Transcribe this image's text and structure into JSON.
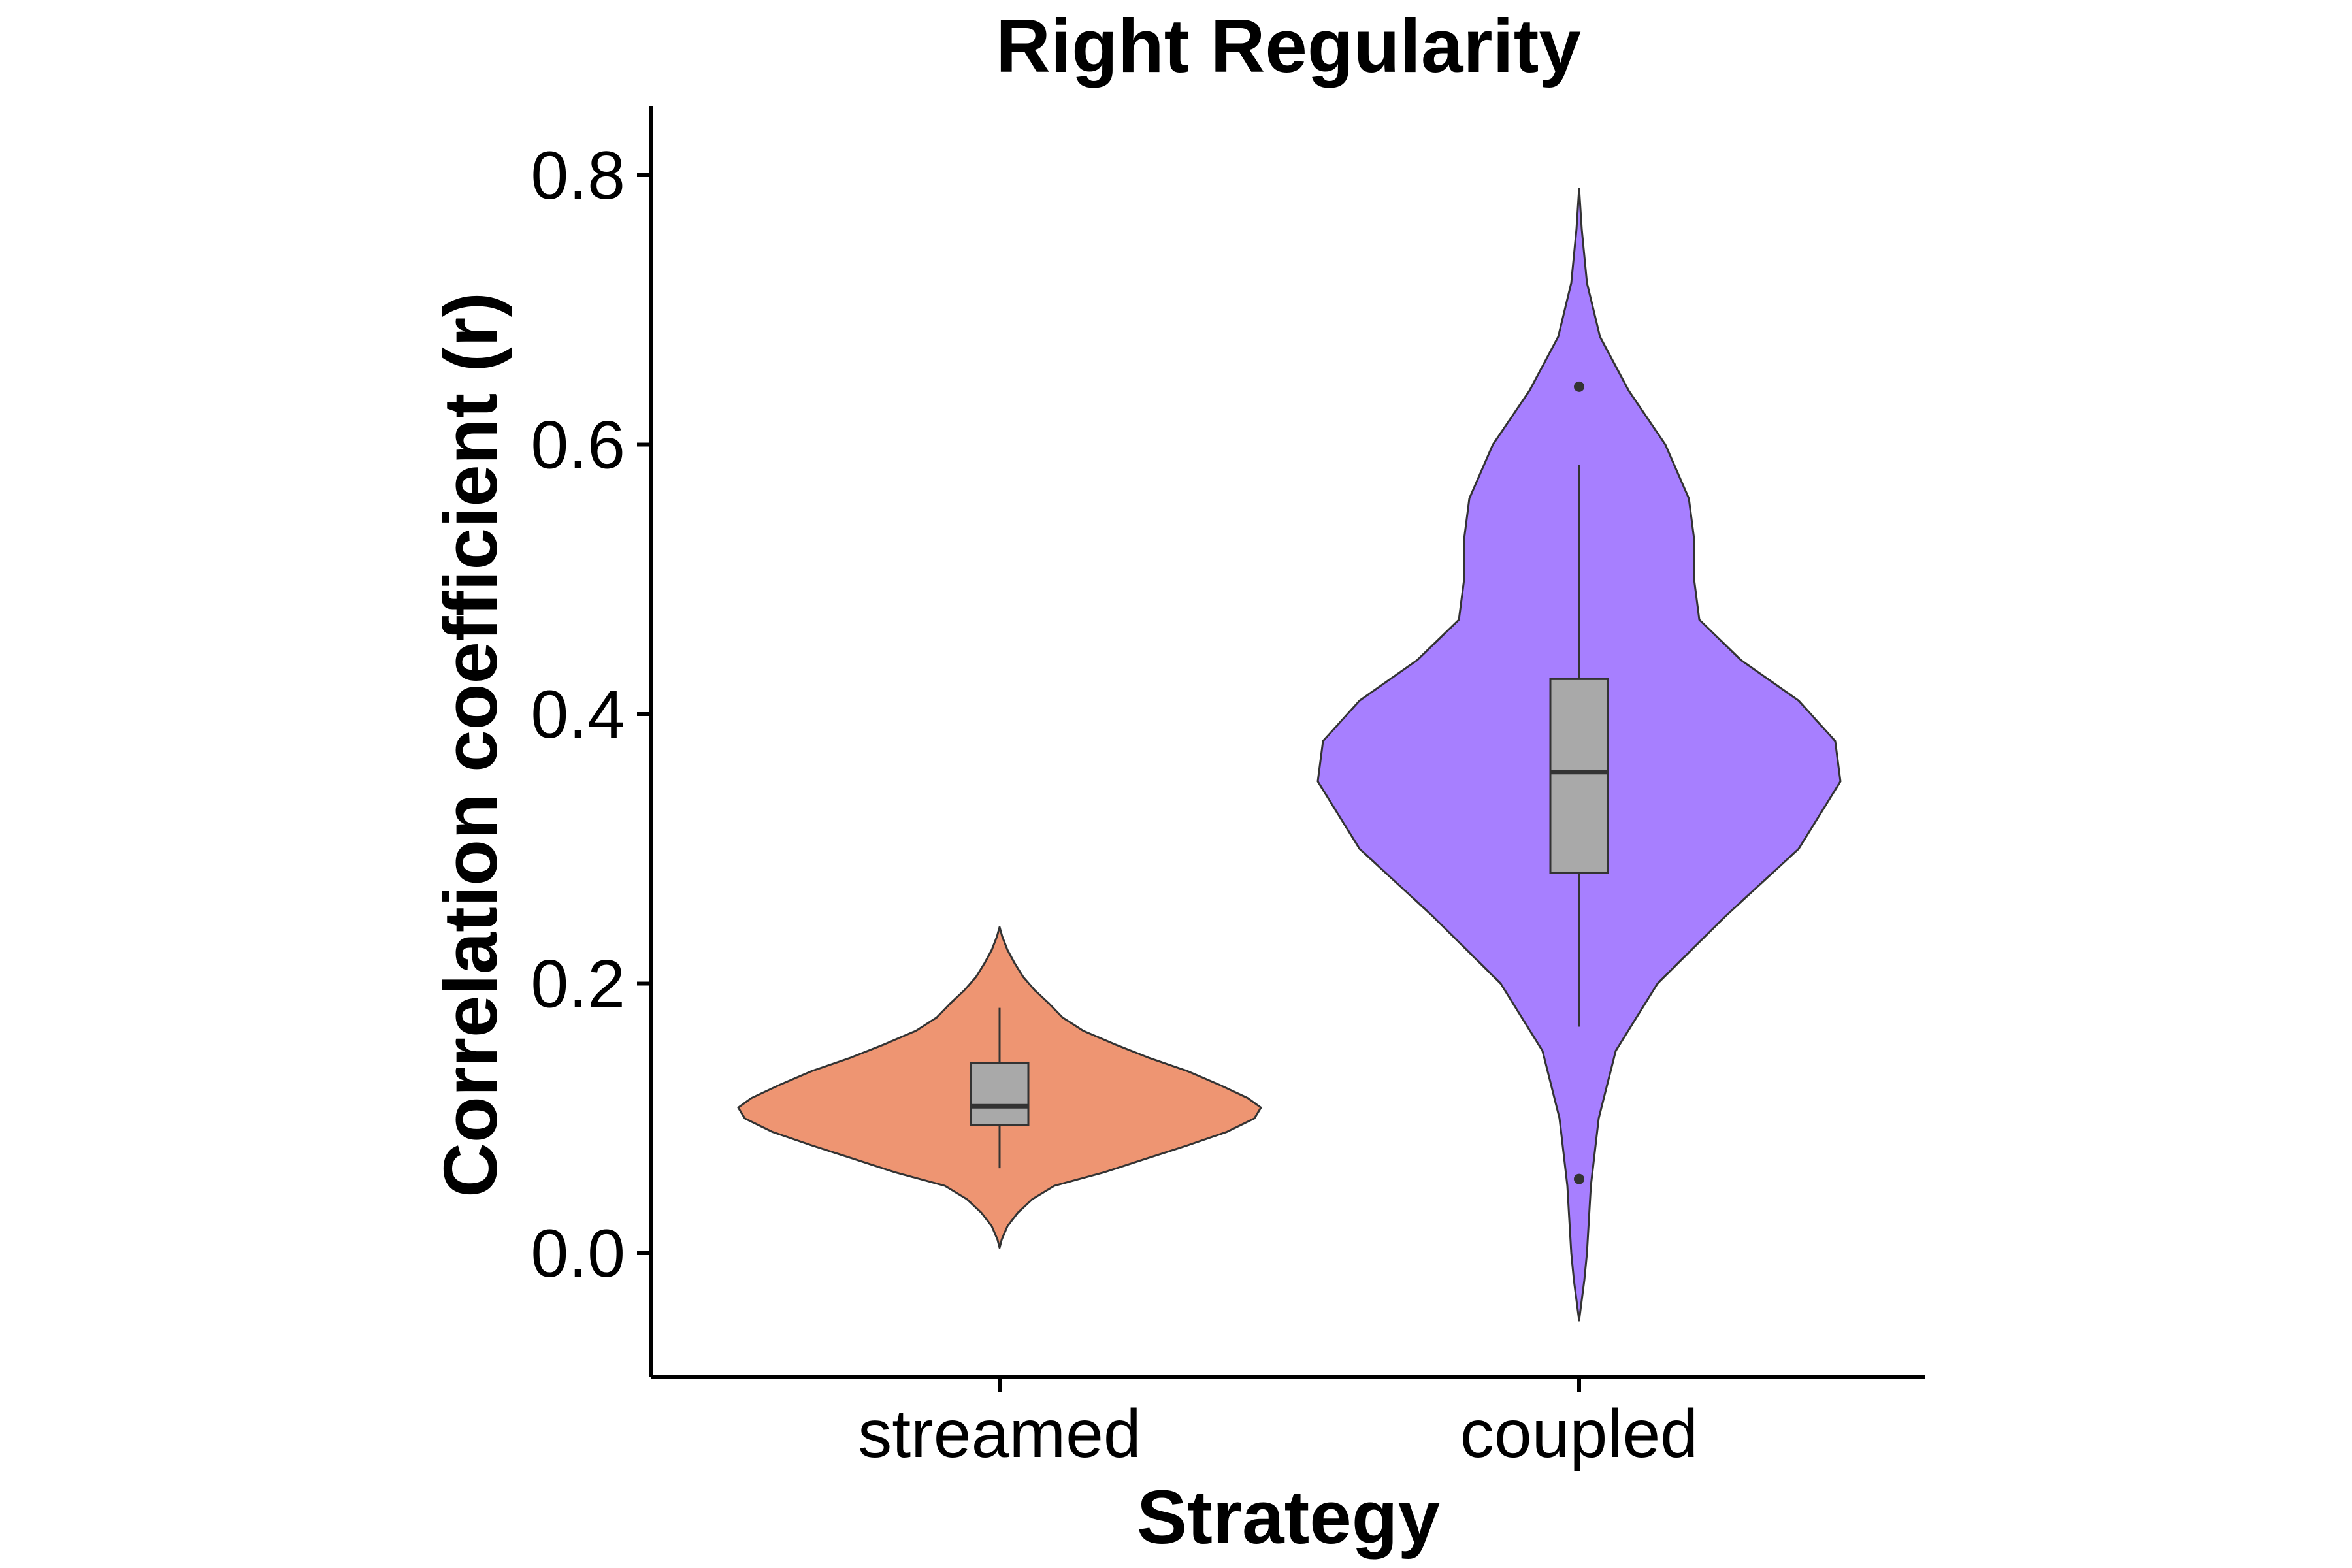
{
  "chart_data": {
    "type": "violin",
    "title": "Right Regularity",
    "xlabel": "Strategy",
    "ylabel": "Correlation coefficient (r)",
    "ylim": [
      -0.09,
      0.85
    ],
    "yticks": [
      "0.0",
      "0.2",
      "0.4",
      "0.6",
      "0.8"
    ],
    "ytick_values": [
      0.0,
      0.2,
      0.4,
      0.6,
      0.8
    ],
    "categories": [
      "streamed",
      "coupled"
    ],
    "grid": false,
    "legend": "none",
    "series": [
      {
        "category": "streamed",
        "color": "#EE9572",
        "violin": {
          "y_min": 0.004,
          "y_max": 0.242,
          "profile": [
            [
              0.004,
              0.0
            ],
            [
              0.01,
              0.008
            ],
            [
              0.02,
              0.03
            ],
            [
              0.03,
              0.07
            ],
            [
              0.04,
              0.125
            ],
            [
              0.05,
              0.21
            ],
            [
              0.06,
              0.4
            ],
            [
              0.07,
              0.56
            ],
            [
              0.08,
              0.72
            ],
            [
              0.09,
              0.87
            ],
            [
              0.1,
              0.975
            ],
            [
              0.108,
              1.0
            ],
            [
              0.115,
              0.95
            ],
            [
              0.125,
              0.84
            ],
            [
              0.135,
              0.72
            ],
            [
              0.145,
              0.57
            ],
            [
              0.155,
              0.44
            ],
            [
              0.165,
              0.32
            ],
            [
              0.175,
              0.24
            ],
            [
              0.185,
              0.19
            ],
            [
              0.195,
              0.135
            ],
            [
              0.205,
              0.09
            ],
            [
              0.215,
              0.058
            ],
            [
              0.225,
              0.03
            ],
            [
              0.235,
              0.01
            ],
            [
              0.242,
              0.0
            ]
          ]
        },
        "box": {
          "whisker_low": 0.063,
          "q1": 0.095,
          "median": 0.109,
          "q3": 0.141,
          "whisker_high": 0.182
        },
        "outliers": []
      },
      {
        "category": "coupled",
        "color": "#A77FFF",
        "violin": {
          "y_min": -0.05,
          "y_max": 0.79,
          "profile": [
            [
              -0.05,
              0.0
            ],
            [
              -0.02,
              0.02
            ],
            [
              0.0,
              0.03
            ],
            [
              0.05,
              0.045
            ],
            [
              0.1,
              0.075
            ],
            [
              0.15,
              0.14
            ],
            [
              0.2,
              0.3
            ],
            [
              0.25,
              0.56
            ],
            [
              0.3,
              0.84
            ],
            [
              0.35,
              1.0
            ],
            [
              0.38,
              0.98
            ],
            [
              0.41,
              0.84
            ],
            [
              0.44,
              0.62
            ],
            [
              0.47,
              0.46
            ],
            [
              0.5,
              0.44
            ],
            [
              0.53,
              0.44
            ],
            [
              0.56,
              0.42
            ],
            [
              0.6,
              0.33
            ],
            [
              0.64,
              0.19
            ],
            [
              0.68,
              0.08
            ],
            [
              0.72,
              0.03
            ],
            [
              0.76,
              0.01
            ],
            [
              0.79,
              0.0
            ]
          ]
        },
        "box": {
          "whisker_low": 0.168,
          "q1": 0.282,
          "median": 0.357,
          "q3": 0.426,
          "whisker_high": 0.585
        },
        "outliers": [
          0.643,
          0.055
        ]
      }
    ],
    "box_fill": "#A9A9A9",
    "outline_color": "#333333"
  }
}
